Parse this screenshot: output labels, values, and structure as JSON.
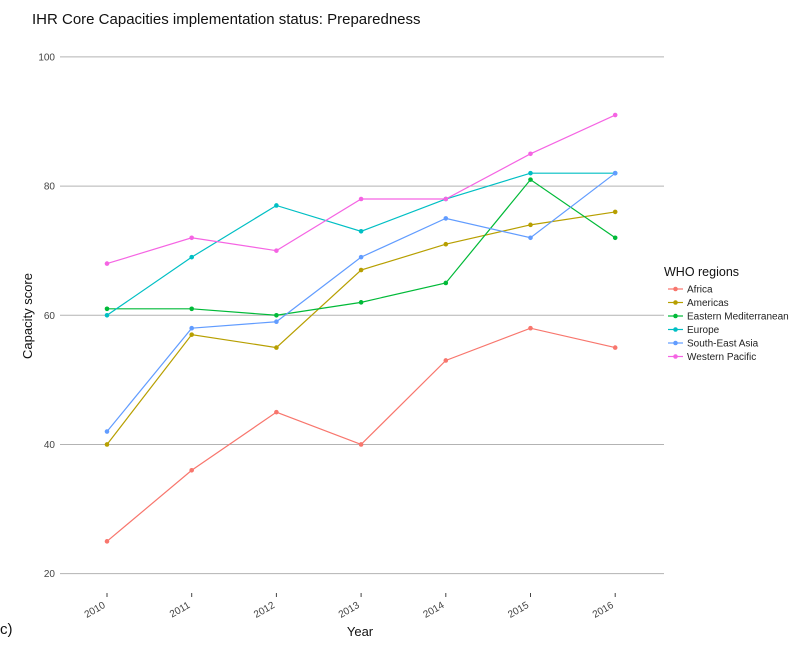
{
  "chart_data": {
    "type": "line",
    "title": "IHR Core Capacities implementation status: Preparedness",
    "xlabel": "Year",
    "ylabel": "Capacity score",
    "x": [
      "2010",
      "2011",
      "2012",
      "2013",
      "2014",
      "2015",
      "2016"
    ],
    "ylim": [
      17,
      102
    ],
    "yticks": [
      20,
      40,
      60,
      80,
      100
    ],
    "grid": "horizontal major lines",
    "legend": {
      "title": "WHO regions",
      "placement": "right"
    },
    "series": [
      {
        "name": "Africa",
        "color": "#f8766d",
        "values": [
          25,
          36,
          45,
          40,
          53,
          58,
          55
        ]
      },
      {
        "name": "Americas",
        "color": "#b79f00",
        "values": [
          40,
          57,
          55,
          67,
          71,
          74,
          76
        ]
      },
      {
        "name": "Eastern Mediterranean",
        "color": "#00ba38",
        "values": [
          61,
          61,
          60,
          62,
          65,
          81,
          72
        ]
      },
      {
        "name": "Europe",
        "color": "#00bfc4",
        "values": [
          60,
          69,
          77,
          73,
          78,
          82,
          82
        ]
      },
      {
        "name": "South-East Asia",
        "color": "#619cff",
        "values": [
          42,
          58,
          59,
          69,
          75,
          72,
          82
        ]
      },
      {
        "name": "Western Pacific",
        "color": "#f564e3",
        "values": [
          68,
          72,
          70,
          78,
          78,
          85,
          91
        ]
      }
    ]
  },
  "panel_label": "c)"
}
